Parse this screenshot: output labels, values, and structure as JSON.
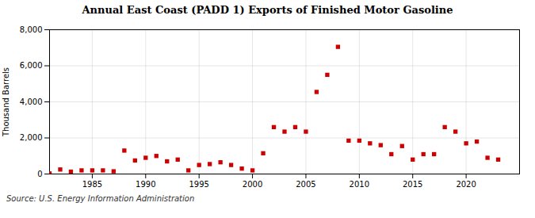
{
  "chart_data": {
    "type": "scatter",
    "title": "Annual East Coast (PADD 1) Exports of Finished Motor Gasoline",
    "ylabel": "Thousand Barrels",
    "annotations": [
      "Source: U.S. Energy Information Administration"
    ],
    "x": [
      1981,
      1982,
      1983,
      1984,
      1985,
      1986,
      1987,
      1988,
      1989,
      1990,
      1991,
      1992,
      1993,
      1994,
      1995,
      1996,
      1997,
      1998,
      1999,
      2000,
      2001,
      2002,
      2003,
      2004,
      2005,
      2006,
      2007,
      2008,
      2009,
      2010,
      2011,
      2012,
      2013,
      2014,
      2015,
      2016,
      2017,
      2018,
      2019,
      2020,
      2021,
      2022,
      2023
    ],
    "values": [
      30,
      250,
      130,
      200,
      200,
      200,
      150,
      1300,
      750,
      900,
      1000,
      700,
      800,
      200,
      500,
      550,
      650,
      500,
      300,
      200,
      1150,
      2600,
      2350,
      2600,
      2350,
      4550,
      5500,
      7050,
      1850,
      1850,
      1700,
      1600,
      1100,
      1550,
      800,
      1100,
      1100,
      2600,
      2350,
      1700,
      1800,
      900,
      800
    ],
    "color": "#cc0000",
    "marker": "square",
    "xlim": [
      1981,
      2025
    ],
    "xticks": [
      1985,
      1990,
      1995,
      2000,
      2005,
      2010,
      2015,
      2020
    ],
    "ylim": [
      0,
      8000
    ],
    "yticks": [
      0,
      {
        "value": 2000,
        "label": "2,000"
      },
      {
        "value": 4000,
        "label": "4,000"
      },
      {
        "value": 6000,
        "label": "6,000"
      },
      {
        "value": 8000,
        "label": "8,000"
      }
    ],
    "grid": true
  }
}
